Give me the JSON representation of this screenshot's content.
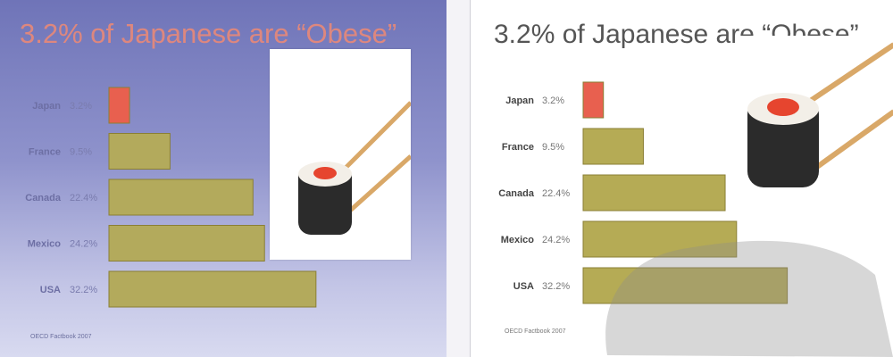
{
  "chart_data": [
    {
      "type": "bar",
      "title": "3.2% of Japanese are “Obese”",
      "categories": [
        "Japan",
        "France",
        "Canada",
        "Mexico",
        "USA"
      ],
      "values": [
        3.2,
        9.5,
        22.4,
        24.2,
        32.2
      ],
      "value_labels": [
        "3.2%",
        "9.5%",
        "22.4%",
        "24.2%",
        "32.2%"
      ],
      "colors": [
        "#e8604f",
        "#b3aa5c",
        "#b3aa5c",
        "#b3aa5c",
        "#b3aa5c"
      ],
      "source": "OECD Factbook 2007",
      "orientation": "horizontal"
    },
    {
      "type": "bar",
      "title": "3.2% of Japanese are “Obese”",
      "categories": [
        "Japan",
        "France",
        "Canada",
        "Mexico",
        "USA"
      ],
      "values": [
        3.2,
        9.5,
        22.4,
        24.2,
        32.2
      ],
      "value_labels": [
        "3.2%",
        "9.5%",
        "22.4%",
        "24.2%",
        "32.2%"
      ],
      "colors": [
        "#e8604f",
        "#b5ab55",
        "#b5ab55",
        "#b5ab55",
        "#b5ab55"
      ],
      "source": "OECD Factbook 2007",
      "orientation": "horizontal"
    }
  ]
}
